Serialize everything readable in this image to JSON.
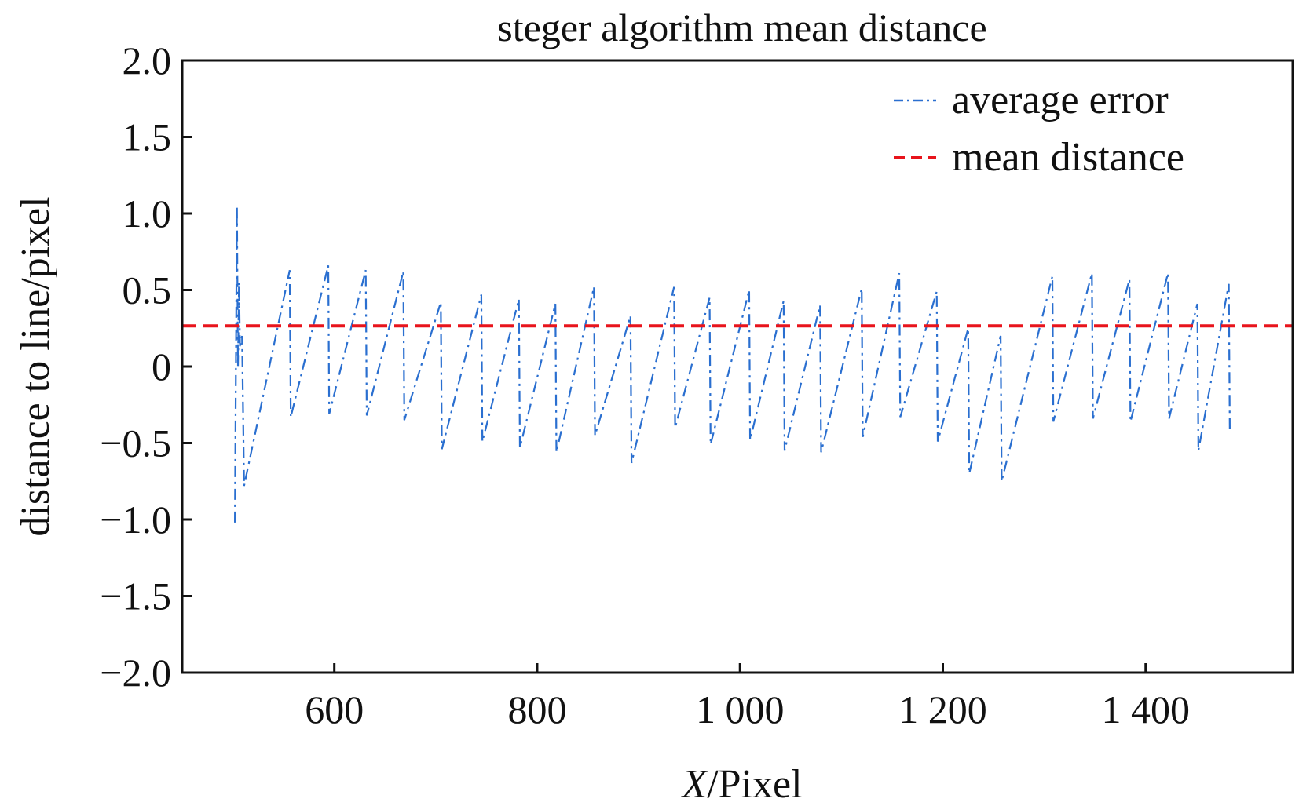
{
  "chart_data": {
    "type": "line",
    "title": "steger algorithm mean distance",
    "xlabel_var": "X",
    "xlabel_unit": "/Pixel",
    "ylabel": "distance to line/pixel",
    "xlim": [
      450,
      1545
    ],
    "ylim": [
      -2.0,
      2.0
    ],
    "x_ticks": [
      600,
      800,
      1000,
      1200,
      1400
    ],
    "x_tick_labels": [
      "600",
      "800",
      "1 000",
      "1 200",
      "1 400"
    ],
    "y_ticks": [
      2.0,
      1.5,
      1.0,
      0.5,
      0,
      -0.5,
      -1.0,
      -1.5,
      -2.0
    ],
    "y_tick_labels": [
      "2.0",
      "1.5",
      "1.0",
      "0.5",
      "0",
      "−0.5",
      "−1.0",
      "−1.5",
      "−2.0"
    ],
    "grid": false,
    "legend_position": "top-right",
    "series": [
      {
        "name": "average error",
        "color": "#2a6fd0",
        "style": "dash-dot",
        "x": [
          502,
          504,
          505,
          506,
          507,
          509,
          511,
          556,
          557,
          594,
          595,
          631,
          632,
          668,
          669,
          705,
          706,
          745,
          746,
          782,
          783,
          818,
          819,
          856,
          857,
          892,
          893,
          935,
          936,
          970,
          971,
          1009,
          1010,
          1043,
          1044,
          1079,
          1080,
          1120,
          1121,
          1157,
          1158,
          1194,
          1195,
          1225,
          1226,
          1257,
          1258,
          1308,
          1309,
          1347,
          1348,
          1384,
          1385,
          1422,
          1423,
          1451,
          1452,
          1482,
          1483
        ],
        "y": [
          -1.02,
          1.05,
          0.0,
          0.55,
          0.12,
          0.2,
          -0.78,
          0.63,
          -0.33,
          0.66,
          -0.31,
          0.63,
          -0.32,
          0.62,
          -0.35,
          0.42,
          -0.54,
          0.47,
          -0.49,
          0.44,
          -0.53,
          0.41,
          -0.56,
          0.52,
          -0.45,
          0.33,
          -0.63,
          0.52,
          -0.4,
          0.45,
          -0.51,
          0.5,
          -0.48,
          0.43,
          -0.55,
          0.4,
          -0.56,
          0.51,
          -0.46,
          0.61,
          -0.33,
          0.49,
          -0.49,
          0.25,
          -0.7,
          0.2,
          -0.75,
          0.59,
          -0.36,
          0.61,
          -0.34,
          0.57,
          -0.36,
          0.61,
          -0.34,
          0.41,
          -0.55,
          0.54,
          -0.42
        ]
      },
      {
        "name": "mean distance",
        "color": "#e8141c",
        "style": "dashed",
        "x": [
          450,
          1545
        ],
        "y": [
          0.265,
          0.265
        ]
      }
    ]
  }
}
